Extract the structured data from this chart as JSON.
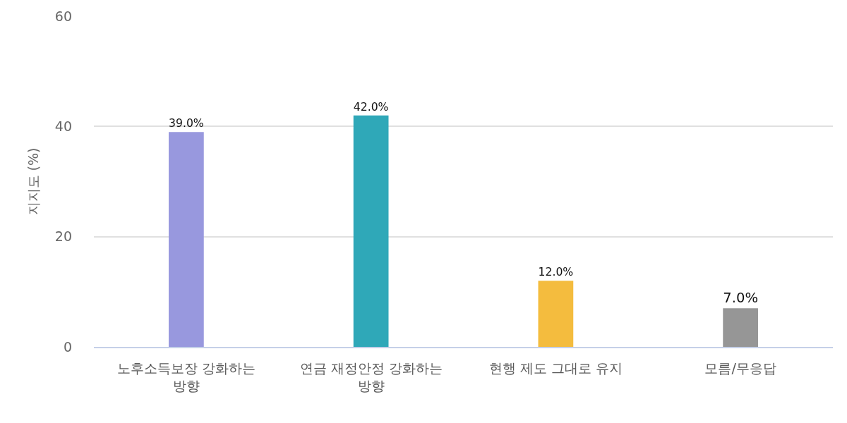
{
  "chart_data": {
    "type": "bar",
    "ylabel": "지지도 (%)",
    "categories": [
      "노후소득보장 강화하는 방향",
      "연금 재정안정 강화하는 방향",
      "현행 제도 그대로 유지",
      "모름/무응답"
    ],
    "values": [
      39,
      42,
      12,
      7
    ],
    "colors": [
      "#9898de",
      "#2fa8b8",
      "#f4bc3e",
      "#969696"
    ],
    "value_labels": [
      "39.0%",
      "42.0%",
      "12.0%",
      "7.0%"
    ],
    "ylim": [
      0,
      60
    ],
    "yticks": [
      0,
      20,
      40,
      60
    ],
    "grid": "y"
  }
}
